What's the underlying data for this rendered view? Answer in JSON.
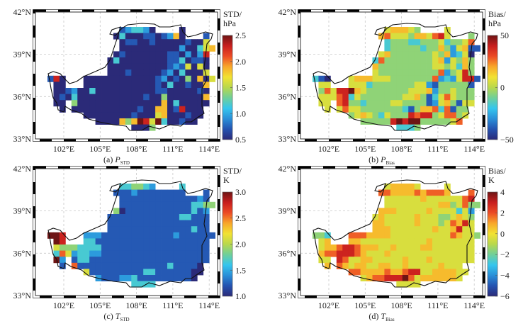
{
  "colormap": [
    "#2b2a78",
    "#2452b0",
    "#2a8fd8",
    "#35c6ee",
    "#6fcf9a",
    "#b8d84c",
    "#f2e232",
    "#f8a72a",
    "#ec4b25",
    "#c81e1e",
    "#6e1414"
  ],
  "colors": {
    "boundary": "#111111",
    "grid": "#c8c8c8",
    "frame": "#000000"
  },
  "chart_data": [
    {
      "type": "heatmap",
      "id": "a",
      "caption": {
        "prefix": "(a) ",
        "var": "P",
        "sub": "STD"
      },
      "cbar_label": [
        "STD/",
        "hPa"
      ],
      "range": [
        0.5,
        2.5
      ],
      "cbar_ticks": [
        "2.5",
        "2.0",
        "1.5",
        "1.0",
        "0.5"
      ],
      "lon_ticks": [
        "102°E",
        "105°E",
        "108°E",
        "111°E",
        "114°E"
      ],
      "lat_ticks": [
        "42°N",
        "39°N",
        "36°N",
        "33°N"
      ],
      "grid_levels": 9,
      "grid": [
        "............123320....0.....",
        "...........030001101260...1.",
        "............011001000001005.",
        "............0000000000200356",
        "...........0100000001102028.",
        "..........03000000001130110.",
        "..........00000000001215050.",
        "..........00010000012030005.",
        "180...0000000000001201040605",
        ".00...000000000000103001006.",
        ".00120030000000000110000010.",
        ".01030000000000010040000006.",
        ".00.40000000000000060300000.",
        "..0.0000000000010066018000..",
        "......00000000100056000100..",
        "........00006469859300100...",
        "..............0004.........."
      ]
    },
    {
      "type": "heatmap",
      "id": "b",
      "caption": {
        "prefix": "(b) ",
        "var": "P",
        "sub": "Bias"
      },
      "cbar_label": [
        "Bias/",
        "hPa"
      ],
      "range": [
        -50,
        50
      ],
      "cbar_ticks": [
        "50",
        "0",
        "−50"
      ],
      "lon_ticks": [
        "102°E",
        "105°E",
        "108°E",
        "111°E",
        "114°E"
      ],
      "lat_ticks": [
        "42°N",
        "39°N",
        "36°N",
        "33°N"
      ],
      "grid_levels": 9,
      "grid": [
        "............566654....5.....",
        "...........675554665785...4.",
        "............344433444534457.",
        "............3444443446425611",
        "...........5644444445462350.",
        "..........37444444445625464.",
        "..........64444444445545364.",
        "..........54444444444724584.",
        "310...5666555444444472325881",
        ".55...555344444445521444441.",
        ".47588965444444455562445444.",
        ".55578354444444556413575444.",
        ".55.78443444455444412564155.",
        "..5.5755444444431466737144..",
        "......45654354448788457745..",
        "........44444898994444457...",
        "..............3334.........."
      ]
    },
    {
      "type": "heatmap",
      "id": "c",
      "caption": {
        "prefix": "(c) ",
        "var": "T",
        "sub": "STD"
      },
      "cbar_label": [
        "STD/",
        "K"
      ],
      "range": [
        1.0,
        3.0
      ],
      "cbar_ticks": [
        "3.0",
        "2.5",
        "2.0",
        "1.5",
        "1.0"
      ],
      "lon_ticks": [
        "102°E",
        "105°E",
        "108°E",
        "111°E",
        "114°E"
      ],
      "lat_ticks": [
        "42°N",
        "39°N",
        "36°N",
        "33°N"
      ],
      "grid_levels": 9,
      "grid": [
        "............334432....3.....",
        "...........111211111111...1.",
        "............111111111111121.",
        "............1111111111113344",
        "...........4011111111111312.",
        "..........11111111111133111.",
        "..........11111111111111111.",
        "..........11111111111111311.",
        "998...2221111111111112111111",
        ".98...331111111111111111111.",
        ".54443333111111111111111111.",
        ".37523322111111111111111111.",
        ".92.13311111111111111111111.",
        "..1.7111111111111111311110..",
        "......51111111113311111100..",
        "........21112231111111110...",
        "..............3333.........."
      ]
    },
    {
      "type": "heatmap",
      "id": "d",
      "caption": {
        "prefix": "(d) ",
        "var": "T",
        "sub": "Bias"
      },
      "cbar_label": [
        "Bias/",
        "K"
      ],
      "range": [
        -6,
        4
      ],
      "cbar_ticks": [
        "4",
        "2",
        "0",
        "−2",
        "−4",
        "−6"
      ],
      "lon_ticks": [
        "102°E",
        "105°E",
        "108°E",
        "111°E",
        "114°E"
      ],
      "lat_ticks": [
        "42°N",
        "39°N",
        "36°N",
        "33°N"
      ],
      "grid_levels": 9,
      "grid": [
        "............566665....5.....",
        "...........776666767776...7.",
        "............555555655555578.",
        "............5555555556645744",
        "...........6665555565555352.",
        "..........56555556555445654.",
        "..........66555556555457685.",
        "..........66655555556556855.",
        "443...7776666555555555576554",
        ".56...665555555555565555555.",
        ".56678876665565555665555555.",
        ".67788876555655555555555555.",
        ".55.87556655555655565555555.",
        "..6.765665566556555556555...",
        "......77666676678855666655..",
        "........56778889756666665...",
        "..............5555.........."
      ]
    }
  ]
}
